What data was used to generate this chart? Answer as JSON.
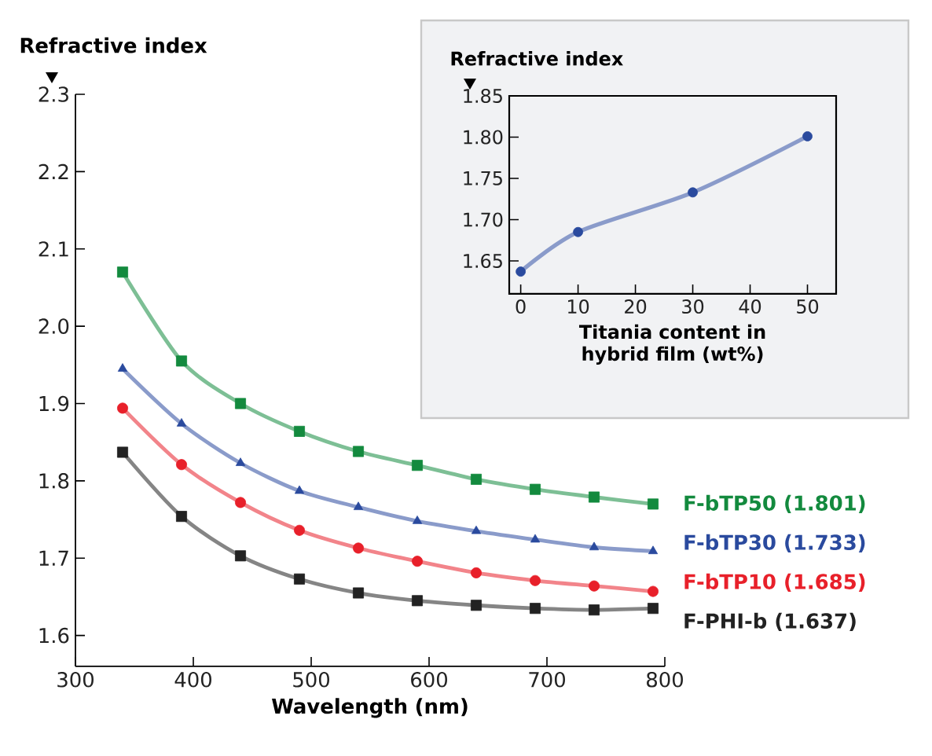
{
  "chart_data": [
    {
      "type": "line",
      "xlabel": "Wavelength (nm)",
      "ylabel": "Refractive index",
      "x": [
        340,
        390,
        440,
        490,
        540,
        590,
        640,
        690,
        740,
        790
      ],
      "xlim": [
        300,
        800
      ],
      "xticks": [
        300,
        400,
        500,
        600,
        700,
        800
      ],
      "ylim": [
        1.56,
        2.3
      ],
      "yticks": [
        1.6,
        1.7,
        1.8,
        1.9,
        {
          "value": 2,
          "label": "2.0"
        },
        2.1,
        2.2,
        2.3
      ],
      "series": [
        {
          "name": "F-bTP50 (1.801)",
          "color": "#138a3e",
          "marker": "square",
          "values": [
            2.07,
            1.955,
            1.9,
            1.864,
            1.838,
            1.82,
            1.802,
            1.789,
            1.779,
            1.77
          ]
        },
        {
          "name": "F-bTP30 (1.733)",
          "color": "#2a4a9e",
          "marker": "triangle",
          "values": [
            1.945,
            1.874,
            1.823,
            1.787,
            1.766,
            1.748,
            1.735,
            1.724,
            1.714,
            1.709
          ]
        },
        {
          "name": "F-bTP10 (1.685)",
          "color": "#e8202a",
          "marker": "circle",
          "values": [
            1.894,
            1.821,
            1.772,
            1.736,
            1.713,
            1.696,
            1.681,
            1.671,
            1.664,
            1.657
          ]
        },
        {
          "name": "F-PHI-b (1.637)",
          "color": "#222222",
          "marker": "square",
          "values": [
            1.837,
            1.754,
            1.703,
            1.673,
            1.655,
            1.645,
            1.639,
            1.635,
            1.633,
            1.635
          ]
        }
      ]
    },
    {
      "type": "line",
      "xlabel": "Titania content in hybrid film (wt%)",
      "ylabel": "Refractive index",
      "x": [
        0,
        10,
        30,
        50
      ],
      "xlim": [
        -2,
        55
      ],
      "xticks": [
        0,
        10,
        20,
        30,
        40,
        50
      ],
      "ylim": [
        1.61,
        1.85
      ],
      "yticks": [
        1.65,
        {
          "value": 1.7,
          "label": "1.70"
        },
        1.75,
        {
          "value": 1.8,
          "label": "1.80"
        },
        1.85
      ],
      "color": "#2a4a9e",
      "marker": "circle",
      "values": [
        1.637,
        1.685,
        1.733,
        1.801
      ]
    }
  ]
}
